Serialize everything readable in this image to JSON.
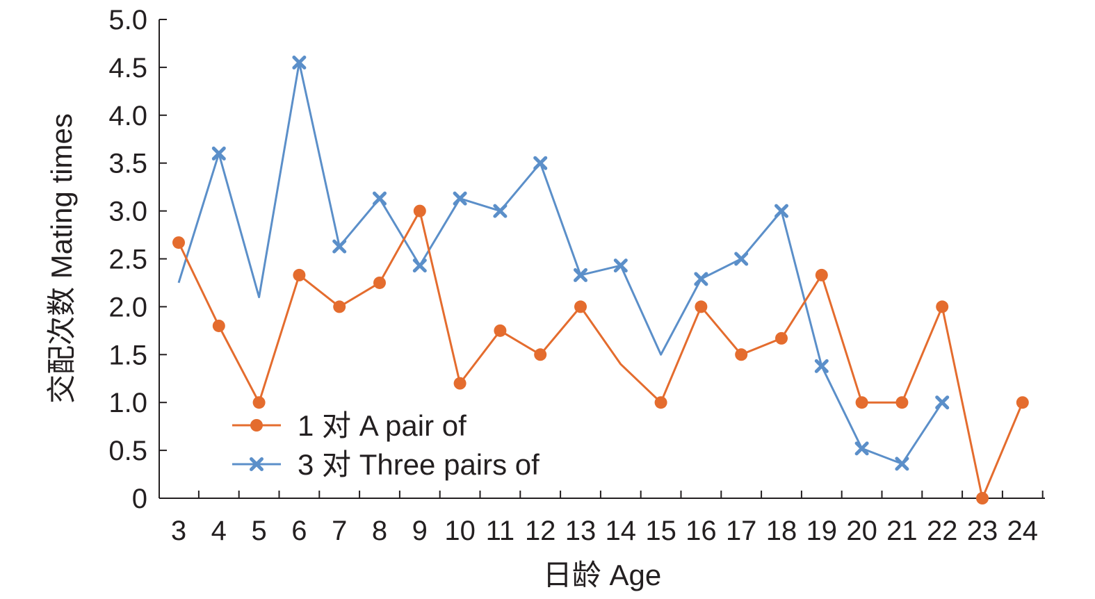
{
  "chart_data": {
    "type": "line",
    "title": "",
    "xlabel": "日龄 Age",
    "ylabel": "交配次数 Mating times",
    "x": [
      3,
      4,
      5,
      6,
      7,
      8,
      9,
      10,
      11,
      12,
      13,
      14,
      15,
      16,
      17,
      18,
      19,
      20,
      21,
      22,
      23,
      24
    ],
    "x_tick_labels": [
      "3",
      "4",
      "5",
      "6",
      "7",
      "8",
      "9",
      "10",
      "11",
      "12",
      "13",
      "14",
      "15",
      "16",
      "17",
      "18",
      "19",
      "20",
      "21",
      "22",
      "23",
      "24"
    ],
    "ylim": [
      0,
      5.0
    ],
    "y_ticks": [
      0,
      0.5,
      1.0,
      1.5,
      2.0,
      2.5,
      3.0,
      3.5,
      4.0,
      4.5,
      5.0
    ],
    "y_tick_labels": [
      "0",
      "0.5",
      "1.0",
      "1.5",
      "2.0",
      "2.5",
      "3.0",
      "3.5",
      "4.0",
      "4.5",
      "5.0"
    ],
    "grid": false,
    "legend_position": "bottom-left",
    "series": [
      {
        "name": "1 对 A pair of",
        "color": "#e46c2e",
        "marker": "circle",
        "values": [
          2.67,
          1.8,
          1.0,
          2.33,
          2.0,
          2.25,
          3.0,
          1.2,
          1.75,
          1.5,
          2.0,
          1.4,
          1.0,
          2.0,
          1.5,
          1.67,
          2.33,
          1.0,
          1.0,
          2.0,
          0.0,
          1.0
        ],
        "marker_mask": [
          true,
          true,
          true,
          true,
          true,
          true,
          true,
          true,
          true,
          true,
          true,
          false,
          true,
          true,
          true,
          true,
          true,
          true,
          true,
          true,
          true,
          true
        ]
      },
      {
        "name": "3 对 Three pairs of",
        "color": "#5b8fc9",
        "marker": "x",
        "values": [
          2.25,
          3.6,
          2.1,
          4.55,
          2.63,
          3.13,
          2.43,
          3.13,
          3.0,
          3.5,
          2.33,
          2.43,
          1.5,
          2.29,
          2.5,
          3.0,
          1.38,
          0.52,
          0.36,
          1.0,
          null,
          null
        ],
        "marker_mask": [
          false,
          true,
          false,
          true,
          true,
          true,
          true,
          true,
          true,
          true,
          true,
          true,
          false,
          true,
          true,
          true,
          true,
          true,
          true,
          true,
          false,
          false
        ]
      }
    ]
  }
}
